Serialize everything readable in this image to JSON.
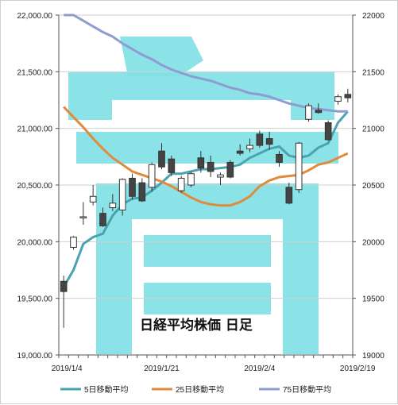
{
  "chart_data": {
    "type": "candlestick",
    "title": "日経平均株価 日足",
    "y_left": {
      "min": 19000,
      "max": 22000,
      "step": 500,
      "tick_labels": [
        "19,000.00",
        "19,500.00",
        "20,000.00",
        "20,500.00",
        "21,000.00",
        "21,500.00",
        "22,000.00"
      ]
    },
    "y_right": {
      "min": 19000,
      "max": 22000,
      "step": 500,
      "tick_labels": [
        "19000",
        "19500",
        "20000",
        "20500",
        "21000",
        "21500",
        "22000"
      ]
    },
    "x_tick_labels": [
      {
        "index": 0,
        "label": "2019/1/4"
      },
      {
        "index": 10,
        "label": "2019/1/21"
      },
      {
        "index": 20,
        "label": "2019/2/4"
      },
      {
        "index": 30,
        "label": "2019/2/19"
      }
    ],
    "gridlines": true,
    "legend_position": "bottom",
    "candles": [
      {
        "o": 19650,
        "h": 19700,
        "l": 19240,
        "c": 19560
      },
      {
        "o": 19950,
        "h": 20050,
        "l": 19930,
        "c": 20040
      },
      {
        "o": 20210,
        "h": 20350,
        "l": 20150,
        "c": 20220
      },
      {
        "o": 20350,
        "h": 20500,
        "l": 20320,
        "c": 20400
      },
      {
        "o": 20250,
        "h": 20300,
        "l": 20130,
        "c": 20140
      },
      {
        "o": 20300,
        "h": 20420,
        "l": 20270,
        "c": 20340
      },
      {
        "o": 20280,
        "h": 20560,
        "l": 20230,
        "c": 20550
      },
      {
        "o": 20560,
        "h": 20600,
        "l": 20370,
        "c": 20400
      },
      {
        "o": 20520,
        "h": 20560,
        "l": 20350,
        "c": 20360
      },
      {
        "o": 20480,
        "h": 20700,
        "l": 20440,
        "c": 20680
      },
      {
        "o": 20800,
        "h": 20870,
        "l": 20640,
        "c": 20660
      },
      {
        "o": 20730,
        "h": 20760,
        "l": 20580,
        "c": 20610
      },
      {
        "o": 20450,
        "h": 20580,
        "l": 20430,
        "c": 20560
      },
      {
        "o": 20500,
        "h": 20620,
        "l": 20480,
        "c": 20600
      },
      {
        "o": 20740,
        "h": 20800,
        "l": 20610,
        "c": 20650
      },
      {
        "o": 20700,
        "h": 20760,
        "l": 20570,
        "c": 20620
      },
      {
        "o": 20570,
        "h": 20610,
        "l": 20500,
        "c": 20590
      },
      {
        "o": 20700,
        "h": 20720,
        "l": 20560,
        "c": 20570
      },
      {
        "o": 20800,
        "h": 20860,
        "l": 20760,
        "c": 20780
      },
      {
        "o": 20820,
        "h": 20910,
        "l": 20790,
        "c": 20850
      },
      {
        "o": 20950,
        "h": 20980,
        "l": 20830,
        "c": 20850
      },
      {
        "o": 20910,
        "h": 20970,
        "l": 20810,
        "c": 20860
      },
      {
        "o": 20770,
        "h": 20800,
        "l": 20660,
        "c": 20700
      },
      {
        "o": 20480,
        "h": 20520,
        "l": 20330,
        "c": 20340
      },
      {
        "o": 20460,
        "h": 20880,
        "l": 20430,
        "c": 20870
      },
      {
        "o": 21080,
        "h": 21220,
        "l": 21060,
        "c": 21200
      },
      {
        "o": 21160,
        "h": 21220,
        "l": 21130,
        "c": 21140
      },
      {
        "o": 21050,
        "h": 21070,
        "l": 20890,
        "c": 20900
      },
      {
        "o": 21240,
        "h": 21300,
        "l": 21210,
        "c": 21280
      },
      {
        "o": 21300,
        "h": 21350,
        "l": 21230,
        "c": 21270
      }
    ],
    "series": [
      {
        "name": "5日移動平均",
        "color": "#4aa3b0",
        "values": [
          19600,
          19750,
          19980,
          20040,
          20070,
          20230,
          20330,
          20380,
          20390,
          20450,
          20520,
          20600,
          20600,
          20620,
          20640,
          20640,
          20650,
          20660,
          20680,
          20740,
          20780,
          20820,
          20840,
          20760,
          20740,
          20760,
          20830,
          20870,
          21050,
          21150
        ]
      },
      {
        "name": "25日移動平均",
        "color": "#e08a3c",
        "values": [
          21190,
          21100,
          21010,
          20910,
          20820,
          20740,
          20680,
          20620,
          20590,
          20560,
          20530,
          20490,
          20440,
          20390,
          20350,
          20330,
          20320,
          20320,
          20350,
          20400,
          20490,
          20540,
          20570,
          20580,
          20590,
          20630,
          20680,
          20700,
          20740,
          20780
        ]
      },
      {
        "name": "75日移動平均",
        "color": "#8e9ccf",
        "values": [
          22050,
          22000,
          21950,
          21900,
          21850,
          21810,
          21750,
          21700,
          21650,
          21610,
          21560,
          21520,
          21490,
          21460,
          21440,
          21420,
          21390,
          21360,
          21340,
          21310,
          21300,
          21280,
          21250,
          21220,
          21200,
          21180,
          21170,
          21160,
          21150,
          21150
        ]
      }
    ]
  },
  "watermark": {
    "color": "#7ee0e6"
  }
}
